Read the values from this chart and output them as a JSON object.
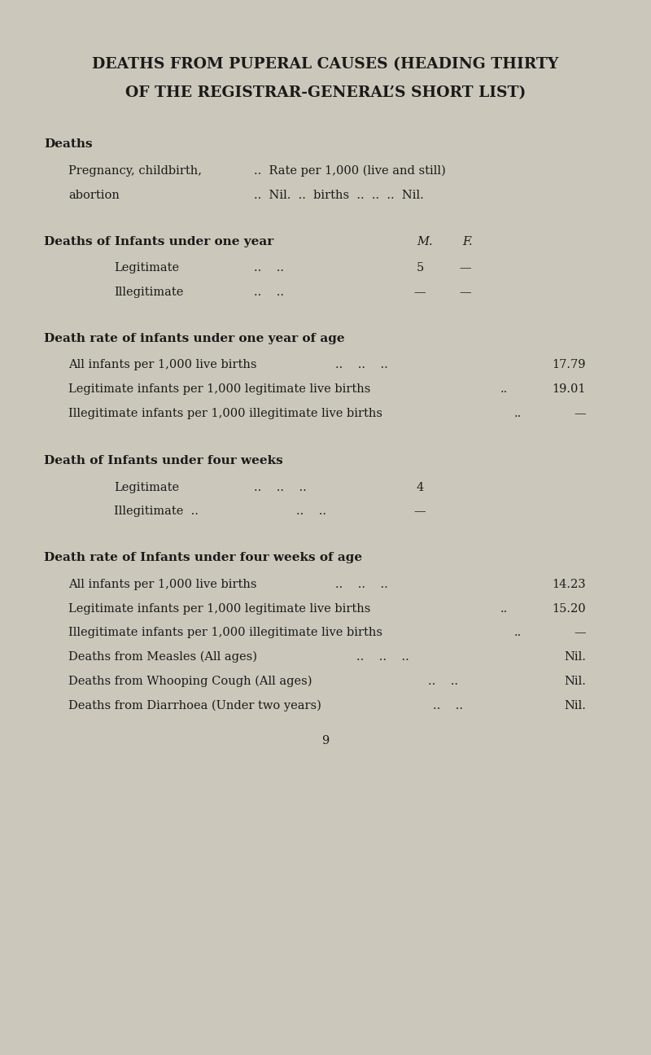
{
  "bg_color": "#cbc8bb",
  "title_line1": "DEATHS FROM PUPERAL CAUSES (HEADING THIRTY",
  "title_line2": "OF THE REGISTRAR-GENERAL’S SHORT LIST)",
  "page_number": "9",
  "font_size_title": 13.5,
  "font_size_header": 11.0,
  "font_size_body": 10.5,
  "text_color": "#1a1a1a"
}
